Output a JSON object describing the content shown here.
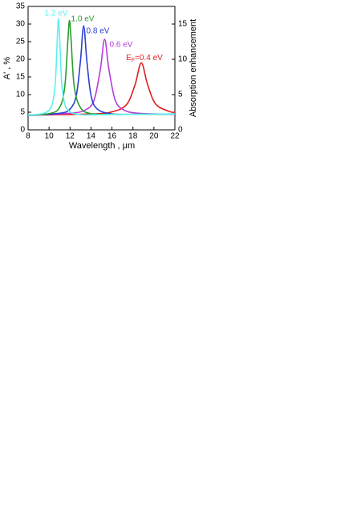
{
  "chart_data": {
    "type": "line",
    "x_label": "Wavelength , μm",
    "y_label": "A' , %",
    "y2_label": "Absorption enhancement",
    "xlim": [
      8,
      22
    ],
    "xticks": [
      8,
      10,
      12,
      14,
      16,
      18,
      20,
      22
    ],
    "ylim": [
      0,
      35
    ],
    "yticks": [
      0,
      5,
      10,
      15,
      20,
      25,
      30,
      35
    ],
    "y2lim": [
      0,
      17.5
    ],
    "y2ticks": [
      0,
      5,
      10,
      15
    ],
    "series": [
      {
        "name": "1.2 eV",
        "color": "#5ef0ee",
        "x": [
          8,
          9,
          9.8,
          10.3,
          10.6,
          10.8,
          10.9,
          11.0,
          11.2,
          11.5,
          12,
          13,
          15,
          18,
          22
        ],
        "values": [
          4.2,
          4.4,
          5.1,
          7.3,
          13.6,
          26.8,
          31.5,
          26.8,
          13.6,
          7.3,
          5.1,
          4.3,
          4.3,
          4.4,
          4.5
        ]
      },
      {
        "name": "1.0 eV",
        "color": "#2a9e2a",
        "x": [
          8,
          10,
          11,
          11.5,
          11.8,
          11.95,
          12.1,
          12.4,
          13,
          14,
          16,
          19,
          22
        ],
        "values": [
          4.2,
          4.6,
          6.3,
          12.3,
          25.6,
          31,
          25.6,
          12.3,
          6.3,
          4.6,
          4.4,
          4.4,
          4.5
        ]
      },
      {
        "name": "0.8 eV",
        "color": "#2a3fd0",
        "x": [
          8,
          11,
          12,
          12.6,
          13,
          13.3,
          13.6,
          14,
          14.6,
          16,
          18,
          22
        ],
        "values": [
          4.1,
          4.7,
          5.9,
          9.8,
          19.7,
          29.5,
          19.7,
          9.8,
          5.9,
          4.5,
          4.4,
          4.5
        ]
      },
      {
        "name": "0.6 eV",
        "color": "#b63cdc",
        "x": [
          8,
          12,
          13.5,
          14.3,
          14.9,
          15.3,
          15.7,
          16.3,
          17.1,
          18.5,
          22
        ],
        "values": [
          4.2,
          4.7,
          5.7,
          8.5,
          17.3,
          25.7,
          17.3,
          8.5,
          5.7,
          4.7,
          4.4
        ]
      },
      {
        "name_parts": [
          "E",
          "F",
          "=0.4 eV"
        ],
        "color": "#e02020",
        "x": [
          8,
          14,
          16,
          17.4,
          18.2,
          18.8,
          19.4,
          20.2,
          21.6,
          22
        ],
        "values": [
          4.2,
          4.5,
          5.1,
          7.2,
          12.8,
          19,
          12.8,
          7.2,
          5.1,
          5.1
        ]
      }
    ]
  }
}
